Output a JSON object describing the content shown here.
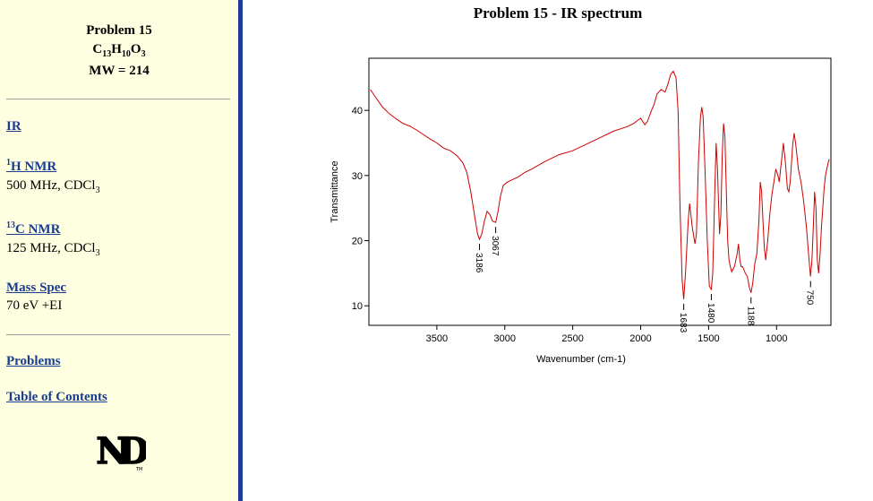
{
  "sidebar": {
    "problem_title": "Problem 15",
    "formula": {
      "c": "C",
      "c_n": "13",
      "h": "H",
      "h_n": "10",
      "o": "O",
      "o_n": "3"
    },
    "mw": "MW = 214",
    "ir_link": "IR",
    "hnmr": {
      "sup": "1",
      "link": "H NMR",
      "cond": "500 MHz, CDCl",
      "cond_sub": "3"
    },
    "cnmr": {
      "sup": "13",
      "link": "C NMR",
      "cond": "125 MHz, CDCl",
      "cond_sub": "3"
    },
    "mass": {
      "link": "Mass Spec",
      "cond": "70 eV +EI"
    },
    "problems_link": "Problems",
    "toc_link": "Table of Contents",
    "logo_icon": "notre-dame-logo",
    "logo_letters": "ND",
    "logo_tm": "TM"
  },
  "colors": {
    "sidebar_bg": "#fefee0",
    "border": "#1d3d9b",
    "link": "#1a3d8f",
    "spectrum": "#cc0000"
  },
  "chart_title": "Problem 15 - IR spectrum",
  "chart_data": {
    "type": "line",
    "title": "Problem 15 - IR spectrum",
    "xlabel": "Wavenumber (cm-1)",
    "ylabel": "Transmittance",
    "xlim": [
      4000,
      600
    ],
    "x_reversed": true,
    "ylim": [
      7,
      48
    ],
    "xticks": [
      3500,
      3000,
      2500,
      2000,
      1500,
      1000
    ],
    "yticks": [
      10,
      20,
      30,
      40
    ],
    "grid": false,
    "series": [
      {
        "color": "#cc0000",
        "points": [
          [
            3990,
            43.2
          ],
          [
            3950,
            42
          ],
          [
            3900,
            40.5
          ],
          [
            3850,
            39.5
          ],
          [
            3800,
            38.7
          ],
          [
            3750,
            38
          ],
          [
            3700,
            37.6
          ],
          [
            3650,
            37
          ],
          [
            3600,
            36.3
          ],
          [
            3550,
            35.6
          ],
          [
            3500,
            35
          ],
          [
            3450,
            34.2
          ],
          [
            3400,
            33.8
          ],
          [
            3350,
            33
          ],
          [
            3310,
            32
          ],
          [
            3280,
            30.5
          ],
          [
            3250,
            27.5
          ],
          [
            3220,
            23.5
          ],
          [
            3200,
            21
          ],
          [
            3186,
            20.2
          ],
          [
            3170,
            21
          ],
          [
            3150,
            23
          ],
          [
            3130,
            24.5
          ],
          [
            3110,
            24
          ],
          [
            3090,
            23
          ],
          [
            3067,
            22.8
          ],
          [
            3050,
            24.5
          ],
          [
            3030,
            27
          ],
          [
            3010,
            28.5
          ],
          [
            2980,
            29
          ],
          [
            2950,
            29.3
          ],
          [
            2900,
            29.8
          ],
          [
            2850,
            30.5
          ],
          [
            2800,
            31
          ],
          [
            2750,
            31.6
          ],
          [
            2700,
            32.2
          ],
          [
            2600,
            33.2
          ],
          [
            2500,
            33.8
          ],
          [
            2400,
            34.8
          ],
          [
            2300,
            35.8
          ],
          [
            2200,
            36.8
          ],
          [
            2100,
            37.5
          ],
          [
            2050,
            38
          ],
          [
            2020,
            38.5
          ],
          [
            2000,
            38.8
          ],
          [
            1970,
            37.8
          ],
          [
            1950,
            38.3
          ],
          [
            1920,
            40
          ],
          [
            1900,
            41
          ],
          [
            1880,
            42.5
          ],
          [
            1850,
            43.2
          ],
          [
            1820,
            42.8
          ],
          [
            1800,
            44
          ],
          [
            1780,
            45.5
          ],
          [
            1760,
            46
          ],
          [
            1740,
            45
          ],
          [
            1725,
            40
          ],
          [
            1710,
            25
          ],
          [
            1695,
            14
          ],
          [
            1683,
            11
          ],
          [
            1670,
            15
          ],
          [
            1650,
            23
          ],
          [
            1640,
            25.7
          ],
          [
            1620,
            22
          ],
          [
            1600,
            19.5
          ],
          [
            1590,
            21
          ],
          [
            1575,
            32
          ],
          [
            1560,
            39
          ],
          [
            1550,
            40.5
          ],
          [
            1540,
            39
          ],
          [
            1525,
            30
          ],
          [
            1510,
            20
          ],
          [
            1495,
            13
          ],
          [
            1480,
            12.5
          ],
          [
            1470,
            15
          ],
          [
            1455,
            27
          ],
          [
            1445,
            35
          ],
          [
            1435,
            31
          ],
          [
            1420,
            21
          ],
          [
            1410,
            24
          ],
          [
            1400,
            33
          ],
          [
            1390,
            38
          ],
          [
            1380,
            36
          ],
          [
            1370,
            28
          ],
          [
            1360,
            20
          ],
          [
            1350,
            17
          ],
          [
            1340,
            16
          ],
          [
            1330,
            15.2
          ],
          [
            1310,
            16
          ],
          [
            1300,
            17
          ],
          [
            1290,
            18
          ],
          [
            1280,
            19.5
          ],
          [
            1270,
            17
          ],
          [
            1260,
            16
          ],
          [
            1250,
            16
          ],
          [
            1230,
            15
          ],
          [
            1215,
            14.5
          ],
          [
            1200,
            12.8
          ],
          [
            1188,
            12
          ],
          [
            1175,
            13.5
          ],
          [
            1160,
            16.5
          ],
          [
            1145,
            18
          ],
          [
            1130,
            23
          ],
          [
            1120,
            29
          ],
          [
            1110,
            27.5
          ],
          [
            1100,
            23
          ],
          [
            1090,
            19
          ],
          [
            1080,
            17
          ],
          [
            1065,
            20
          ],
          [
            1050,
            24
          ],
          [
            1035,
            27
          ],
          [
            1020,
            29
          ],
          [
            1005,
            31
          ],
          [
            990,
            30
          ],
          [
            980,
            29
          ],
          [
            970,
            31
          ],
          [
            960,
            33
          ],
          [
            950,
            35
          ],
          [
            945,
            34
          ],
          [
            935,
            32
          ],
          [
            920,
            28
          ],
          [
            910,
            27.5
          ],
          [
            900,
            29
          ],
          [
            890,
            32
          ],
          [
            880,
            35
          ],
          [
            870,
            36.5
          ],
          [
            860,
            35
          ],
          [
            850,
            33
          ],
          [
            840,
            31
          ],
          [
            830,
            30
          ],
          [
            820,
            29
          ],
          [
            800,
            26
          ],
          [
            780,
            22
          ],
          [
            765,
            18
          ],
          [
            750,
            14.5
          ],
          [
            740,
            17
          ],
          [
            730,
            22
          ],
          [
            720,
            27.5
          ],
          [
            710,
            25
          ],
          [
            700,
            17
          ],
          [
            690,
            15
          ],
          [
            680,
            18
          ],
          [
            670,
            22
          ],
          [
            660,
            25
          ],
          [
            650,
            28
          ],
          [
            640,
            30
          ],
          [
            630,
            31
          ],
          [
            620,
            32
          ],
          [
            612,
            32.5
          ]
        ]
      }
    ],
    "annotations": [
      {
        "label": "3186",
        "x": 3186,
        "y": 20.2
      },
      {
        "label": "3067",
        "x": 3067,
        "y": 22.8
      },
      {
        "label": "1683",
        "x": 1683,
        "y": 11
      },
      {
        "label": "1480",
        "x": 1480,
        "y": 12.5
      },
      {
        "label": "1188",
        "x": 1188,
        "y": 12
      },
      {
        "label": "750",
        "x": 750,
        "y": 14.5
      }
    ]
  }
}
